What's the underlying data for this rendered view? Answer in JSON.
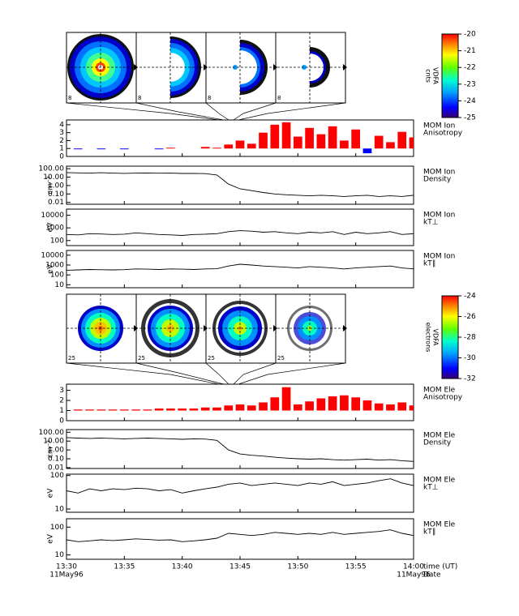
{
  "time_axis": {
    "xlim": [
      "13:30",
      "14:00"
    ],
    "ticks": [
      "13:30",
      "13:35",
      "13:40",
      "13:45",
      "13:50",
      "13:55",
      "14:00"
    ],
    "date": "11May96",
    "name": "time (UT)",
    "date_name": "Date"
  },
  "ion_images": {
    "labels": [
      "8",
      "8",
      "8",
      "8"
    ]
  },
  "ele_images": {
    "labels": [
      "25",
      "25",
      "25",
      "25"
    ]
  },
  "ion_colorbar": {
    "lim": [
      -20,
      -25
    ],
    "ticks": [
      -20,
      -21,
      -22,
      -23,
      -24,
      -25
    ],
    "label": [
      "VDFA",
      "cnts"
    ]
  },
  "ele_colorbar": {
    "lim": [
      -24,
      -32
    ],
    "ticks": [
      -24,
      -26,
      -28,
      -30,
      -32
    ],
    "label": [
      "VDFA",
      "electrons"
    ]
  },
  "chart_data": [
    {
      "type": "bar",
      "label": [
        "MOM Ion",
        "Anisotropy"
      ],
      "baseline": 1,
      "above_color": "#ff0000",
      "below_color": "#0000ff",
      "ylim": [
        0,
        4.6
      ],
      "yticks": [
        0,
        1,
        2,
        3,
        4
      ],
      "x": [
        "13:30",
        "13:31",
        "13:32",
        "13:33",
        "13:34",
        "13:35",
        "13:36",
        "13:37",
        "13:38",
        "13:39",
        "13:40",
        "13:41",
        "13:42",
        "13:43",
        "13:44",
        "13:45",
        "13:46",
        "13:47",
        "13:48",
        "13:49",
        "13:50",
        "13:51",
        "13:52",
        "13:53",
        "13:54",
        "13:55",
        "13:56",
        "13:57",
        "13:58",
        "13:59",
        "14:00"
      ],
      "values": [
        1.0,
        0.9,
        1.0,
        0.9,
        1.0,
        0.9,
        1.0,
        1.0,
        0.9,
        1.1,
        1.0,
        1.0,
        1.2,
        1.1,
        1.5,
        2.0,
        1.6,
        3.0,
        4.0,
        4.3,
        2.5,
        3.6,
        2.8,
        3.8,
        2.0,
        3.4,
        0.4,
        2.6,
        1.8,
        3.1,
        2.4
      ]
    },
    {
      "type": "line",
      "log": true,
      "label": [
        "MOM Ion",
        "Density"
      ],
      "ylabel": "cm⁻³",
      "color": "#000000",
      "ylim": [
        0.006,
        200
      ],
      "yticks": [
        {
          "value": 100,
          "label": "100.00"
        },
        {
          "value": 10,
          "label": "10.00"
        },
        {
          "value": 1,
          "label": "1.00"
        },
        {
          "value": 0.1,
          "label": "0.10"
        },
        0.01
      ],
      "x": [
        "13:30",
        "13:31",
        "13:32",
        "13:33",
        "13:34",
        "13:35",
        "13:36",
        "13:37",
        "13:38",
        "13:39",
        "13:40",
        "13:41",
        "13:42",
        "13:43",
        "13:44",
        "13:45",
        "13:46",
        "13:47",
        "13:48",
        "13:49",
        "13:50",
        "13:51",
        "13:52",
        "13:53",
        "13:54",
        "13:55",
        "13:56",
        "13:57",
        "13:58",
        "13:59",
        "14:00"
      ],
      "values": [
        35,
        32,
        30,
        33,
        30,
        28,
        30,
        31,
        29,
        30,
        27,
        28,
        26,
        18,
        1.5,
        0.4,
        0.25,
        0.15,
        0.1,
        0.08,
        0.07,
        0.06,
        0.07,
        0.06,
        0.05,
        0.06,
        0.07,
        0.05,
        0.06,
        0.05,
        0.07
      ]
    },
    {
      "type": "line",
      "log": true,
      "label": [
        "MOM Ion",
        "kT⊥"
      ],
      "ylabel": "eV",
      "color": "#000000",
      "ylim": [
        40,
        30000
      ],
      "yticks": [
        10000,
        1000,
        100
      ],
      "x": [
        "13:30",
        "13:31",
        "13:32",
        "13:33",
        "13:34",
        "13:35",
        "13:36",
        "13:37",
        "13:38",
        "13:39",
        "13:40",
        "13:41",
        "13:42",
        "13:43",
        "13:44",
        "13:45",
        "13:46",
        "13:47",
        "13:48",
        "13:49",
        "13:50",
        "13:51",
        "13:52",
        "13:53",
        "13:54",
        "13:55",
        "13:56",
        "13:57",
        "13:58",
        "13:59",
        "14:00"
      ],
      "values": [
        300,
        280,
        350,
        330,
        300,
        320,
        400,
        350,
        300,
        280,
        250,
        300,
        320,
        350,
        500,
        600,
        550,
        450,
        500,
        400,
        350,
        450,
        400,
        500,
        300,
        450,
        350,
        400,
        500,
        300,
        350
      ]
    },
    {
      "type": "line",
      "log": true,
      "label": [
        "MOM Ion",
        "kT∥"
      ],
      "ylabel": "eV",
      "color": "#000000",
      "ylim": [
        5,
        30000
      ],
      "yticks": [
        10000,
        1000,
        100,
        10
      ],
      "x": [
        "13:30",
        "13:31",
        "13:32",
        "13:33",
        "13:34",
        "13:35",
        "13:36",
        "13:37",
        "13:38",
        "13:39",
        "13:40",
        "13:41",
        "13:42",
        "13:43",
        "13:44",
        "13:45",
        "13:46",
        "13:47",
        "13:48",
        "13:49",
        "13:50",
        "13:51",
        "13:52",
        "13:53",
        "13:54",
        "13:55",
        "13:56",
        "13:57",
        "13:58",
        "13:59",
        "14:00"
      ],
      "values": [
        300,
        320,
        350,
        330,
        320,
        340,
        400,
        380,
        350,
        400,
        380,
        350,
        400,
        420,
        800,
        1200,
        1000,
        800,
        700,
        600,
        500,
        700,
        600,
        500,
        400,
        500,
        600,
        700,
        800,
        500,
        400
      ]
    },
    {
      "type": "bar",
      "label": [
        "MOM Ele",
        "Anisotropy"
      ],
      "baseline": 1,
      "above_color": "#ff0000",
      "below_color": "#0000ff",
      "ylim": [
        0,
        3.6
      ],
      "yticks": [
        0,
        1,
        2,
        3
      ],
      "x": [
        "13:30",
        "13:31",
        "13:32",
        "13:33",
        "13:34",
        "13:35",
        "13:36",
        "13:37",
        "13:38",
        "13:39",
        "13:40",
        "13:41",
        "13:42",
        "13:43",
        "13:44",
        "13:45",
        "13:46",
        "13:47",
        "13:48",
        "13:49",
        "13:50",
        "13:51",
        "13:52",
        "13:53",
        "13:54",
        "13:55",
        "13:56",
        "13:57",
        "13:58",
        "13:59",
        "14:00"
      ],
      "values": [
        1.0,
        1.1,
        1.1,
        1.1,
        1.1,
        1.1,
        1.1,
        1.1,
        1.2,
        1.2,
        1.2,
        1.2,
        1.3,
        1.3,
        1.5,
        1.6,
        1.5,
        1.8,
        2.3,
        3.3,
        1.6,
        1.9,
        2.2,
        2.4,
        2.5,
        2.3,
        2.0,
        1.7,
        1.6,
        1.8,
        1.5
      ]
    },
    {
      "type": "line",
      "log": true,
      "label": [
        "MOM Ele",
        "Density"
      ],
      "ylabel": "cm⁻³",
      "color": "#000000",
      "ylim": [
        0.008,
        200
      ],
      "yticks": [
        {
          "value": 100,
          "label": "100.00"
        },
        {
          "value": 10,
          "label": "10.00"
        },
        {
          "value": 1,
          "label": "1.00"
        },
        {
          "value": 0.1,
          "label": "0.10"
        },
        0.01
      ],
      "x": [
        "13:30",
        "13:31",
        "13:32",
        "13:33",
        "13:34",
        "13:35",
        "13:36",
        "13:37",
        "13:38",
        "13:39",
        "13:40",
        "13:41",
        "13:42",
        "13:43",
        "13:44",
        "13:45",
        "13:46",
        "13:47",
        "13:48",
        "13:49",
        "13:50",
        "13:51",
        "13:52",
        "13:53",
        "13:54",
        "13:55",
        "13:56",
        "13:57",
        "13:58",
        "13:59",
        "14:00"
      ],
      "values": [
        25,
        22,
        20,
        22,
        20,
        18,
        20,
        22,
        20,
        18,
        16,
        18,
        17,
        12,
        1.0,
        0.35,
        0.25,
        0.2,
        0.15,
        0.12,
        0.1,
        0.09,
        0.1,
        0.08,
        0.07,
        0.08,
        0.09,
        0.07,
        0.08,
        0.06,
        0.05
      ]
    },
    {
      "type": "line",
      "log": true,
      "label": [
        "MOM Ele",
        "kT⊥"
      ],
      "ylabel": "eV",
      "color": "#000000",
      "ylim": [
        8,
        110
      ],
      "yticks": [
        100,
        10
      ],
      "x": [
        "13:30",
        "13:31",
        "13:32",
        "13:33",
        "13:34",
        "13:35",
        "13:36",
        "13:37",
        "13:38",
        "13:39",
        "13:40",
        "13:41",
        "13:42",
        "13:43",
        "13:44",
        "13:45",
        "13:46",
        "13:47",
        "13:48",
        "13:49",
        "13:50",
        "13:51",
        "13:52",
        "13:53",
        "13:54",
        "13:55",
        "13:56",
        "13:57",
        "13:58",
        "13:59",
        "14:00"
      ],
      "values": [
        35,
        30,
        40,
        35,
        40,
        38,
        42,
        40,
        35,
        38,
        30,
        35,
        40,
        45,
        55,
        60,
        50,
        55,
        60,
        55,
        50,
        60,
        55,
        65,
        50,
        55,
        60,
        70,
        80,
        60,
        50
      ]
    },
    {
      "type": "line",
      "log": true,
      "label": [
        "MOM Ele",
        "kT∥"
      ],
      "ylabel": "eV",
      "color": "#000000",
      "ylim": [
        7,
        200
      ],
      "yticks": [
        100,
        10
      ],
      "x": [
        "13:30",
        "13:31",
        "13:32",
        "13:33",
        "13:34",
        "13:35",
        "13:36",
        "13:37",
        "13:38",
        "13:39",
        "13:40",
        "13:41",
        "13:42",
        "13:43",
        "13:44",
        "13:45",
        "13:46",
        "13:47",
        "13:48",
        "13:49",
        "13:50",
        "13:51",
        "13:52",
        "13:53",
        "13:54",
        "13:55",
        "13:56",
        "13:57",
        "13:58",
        "13:59",
        "14:00"
      ],
      "values": [
        35,
        30,
        32,
        35,
        33,
        35,
        38,
        36,
        34,
        35,
        30,
        32,
        35,
        40,
        60,
        55,
        50,
        55,
        65,
        60,
        55,
        60,
        55,
        65,
        55,
        60,
        65,
        70,
        80,
        60,
        50
      ]
    }
  ]
}
